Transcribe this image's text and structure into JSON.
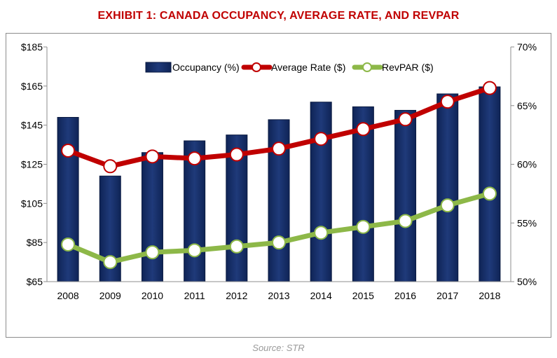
{
  "title": "EXHIBIT 1: CANADA OCCUPANCY, AVERAGE RATE, AND REVPAR",
  "source": "Source: STR",
  "colors": {
    "title": "#c00000",
    "occupancy_bar": "#1f3a7a",
    "average_rate": "#c00000",
    "revpar": "#8db848",
    "marker_fill": "#ffffff"
  },
  "chart_data": {
    "type": "bar",
    "categories": [
      "2008",
      "2009",
      "2010",
      "2011",
      "2012",
      "2013",
      "2014",
      "2015",
      "2016",
      "2017",
      "2018"
    ],
    "series": [
      {
        "name": "Occupancy (%)",
        "type": "bar",
        "axis": "right",
        "values": [
          64.0,
          59.0,
          61.0,
          62.0,
          62.5,
          63.8,
          65.3,
          64.9,
          64.6,
          66.0,
          66.6
        ]
      },
      {
        "name": "Average Rate ($)",
        "type": "line",
        "axis": "left",
        "values": [
          132,
          124,
          129,
          128,
          130,
          133,
          138,
          143,
          148,
          157,
          164
        ]
      },
      {
        "name": "RevPAR ($)",
        "type": "line",
        "axis": "left",
        "values": [
          84,
          75,
          80,
          81,
          83,
          85,
          90,
          93,
          96,
          104,
          110
        ]
      }
    ],
    "y_left": {
      "min": 65,
      "max": 185,
      "ticks": [
        "$65",
        "$85",
        "$105",
        "$125",
        "$145",
        "$165",
        "$185"
      ]
    },
    "y_right": {
      "min": 50,
      "max": 70,
      "ticks": [
        "50%",
        "55%",
        "60%",
        "65%",
        "70%"
      ]
    },
    "legend_position": "top-center",
    "grid": false
  }
}
